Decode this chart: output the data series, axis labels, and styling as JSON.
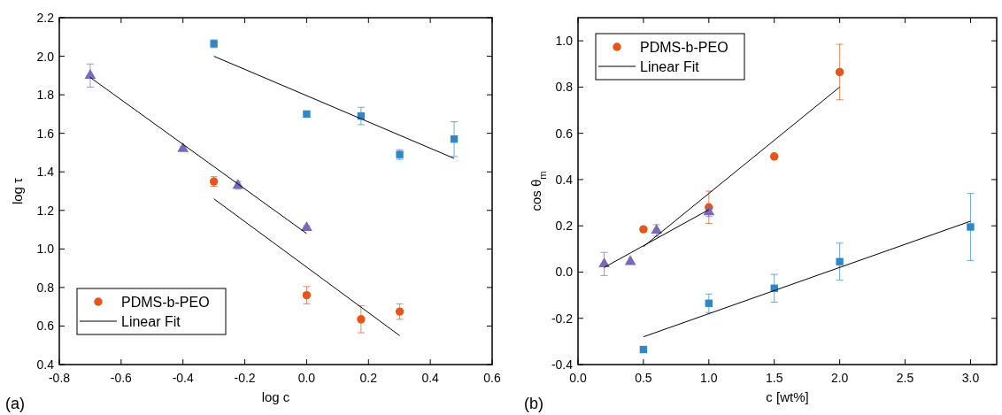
{
  "chart_data": [
    {
      "type": "scatter",
      "xlabel": "log c",
      "ylabel": "log τ",
      "annotations": [
        "(a)"
      ],
      "xlim": [
        -0.8,
        0.6
      ],
      "ylim": [
        0.4,
        2.2
      ],
      "xticks": [
        -0.8,
        -0.6,
        -0.4,
        -0.2,
        {
          "value": 0,
          "label": "0.0"
        },
        0.2,
        0.4,
        0.6
      ],
      "yticks": [
        0.4,
        0.6,
        0.8,
        {
          "value": 1,
          "label": "1.0"
        },
        1.2,
        1.4,
        1.6,
        1.8,
        {
          "value": 2,
          "label": "2.0"
        },
        2.2
      ],
      "legend": "bottom left",
      "grid": false,
      "series": [
        {
          "color": "#2f86c8",
          "marker": "square",
          "x": [
            -0.3,
            0,
            0.176,
            0.301,
            0.477
          ],
          "values": [
            2.065,
            1.7,
            1.69,
            1.49,
            1.57
          ],
          "errors": [
            0.02,
            null,
            0.045,
            0.025,
            0.09
          ]
        },
        {
          "color": "#7b68b8",
          "marker": "triangle",
          "x": [
            -0.7,
            -0.4,
            -0.222,
            0
          ],
          "values": [
            1.9,
            1.52,
            1.33,
            1.11
          ],
          "errors": [
            0.06,
            0.01,
            0.02,
            0.01
          ]
        },
        {
          "name": "PDMS-b-PEO",
          "color": "#e8541a",
          "marker": "circle",
          "x": [
            -0.3,
            0,
            0.176,
            0.301
          ],
          "values": [
            1.35,
            0.76,
            0.635,
            0.675
          ],
          "errors": [
            0.025,
            0.045,
            0.07,
            0.04
          ]
        },
        {
          "name": "Linear Fit",
          "type": "line",
          "color": "#000000",
          "x": [
            -0.3,
            0.477
          ],
          "values": [
            2.0,
            1.47
          ]
        },
        {
          "type": "line",
          "color": "#000000",
          "x": [
            -0.7,
            0
          ],
          "values": [
            1.89,
            1.08
          ]
        },
        {
          "type": "line",
          "color": "#000000",
          "x": [
            -0.3,
            0.301
          ],
          "values": [
            1.26,
            0.55
          ]
        }
      ]
    },
    {
      "type": "scatter",
      "xlabel": "c [wt%]",
      "ylabel": "cos θ$_{m}$",
      "annotations": [
        "(b)"
      ],
      "xlim": [
        0,
        3.2
      ],
      "ylim": [
        -0.4,
        1.1
      ],
      "xticks": [
        {
          "value": 0,
          "label": "0.0"
        },
        0.5,
        {
          "value": 1,
          "label": "1.0"
        },
        1.5,
        {
          "value": 2,
          "label": "2.0"
        },
        2.5,
        {
          "value": 3,
          "label": "3.0"
        }
      ],
      "yticks": [
        -0.4,
        -0.2,
        {
          "value": 0,
          "label": "0.0"
        },
        0.2,
        0.4,
        0.6,
        0.8,
        {
          "value": 1,
          "label": "1.0"
        }
      ],
      "legend": "top left",
      "grid": false,
      "series": [
        {
          "name": "PDMS-b-PEO",
          "color": "#e8541a",
          "marker": "circle",
          "x": [
            0.5,
            1,
            1.5,
            2
          ],
          "values": [
            0.185,
            0.28,
            0.5,
            0.865
          ],
          "errors": [
            null,
            0.07,
            null,
            0.12
          ]
        },
        {
          "color": "#7b68b8",
          "marker": "triangle",
          "x": [
            0.2,
            0.4,
            0.6,
            1
          ],
          "values": [
            0.035,
            0.045,
            0.18,
            0.26
          ],
          "errors": [
            0.05,
            null,
            0.025,
            0.02
          ]
        },
        {
          "color": "#2f86c8",
          "marker": "square",
          "x": [
            0.5,
            1,
            1.5,
            2,
            3
          ],
          "values": [
            -0.335,
            -0.135,
            -0.07,
            0.045,
            0.195
          ],
          "errors": [
            null,
            0.04,
            0.06,
            0.08,
            0.145
          ]
        },
        {
          "name": "Linear Fit",
          "type": "line",
          "color": "#000000",
          "x": [
            0.5,
            2
          ],
          "values": [
            0.11,
            0.8
          ]
        },
        {
          "type": "line",
          "color": "#000000",
          "x": [
            0.2,
            1
          ],
          "values": [
            0.02,
            0.27
          ]
        },
        {
          "type": "line",
          "color": "#000000",
          "x": [
            0.5,
            3
          ],
          "values": [
            -0.28,
            0.22
          ]
        }
      ]
    }
  ]
}
